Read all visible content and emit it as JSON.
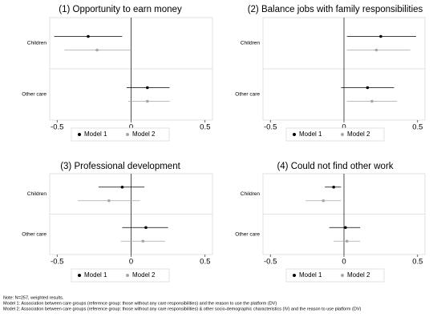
{
  "chart_data": [
    {
      "type": "coefplot",
      "title": "(1) Opportunity to earn money",
      "categories": [
        "Children",
        "Other care"
      ],
      "series": [
        {
          "name": "Model 1",
          "color": "#000000",
          "values": [
            -0.29,
            0.11
          ],
          "ci_low": [
            -0.52,
            -0.03
          ],
          "ci_high": [
            -0.06,
            0.26
          ]
        },
        {
          "name": "Model 2",
          "color": "#a6a6a6",
          "values": [
            -0.23,
            0.11
          ],
          "ci_low": [
            -0.45,
            -0.02
          ],
          "ci_high": [
            0.0,
            0.26
          ]
        }
      ],
      "xlim": [
        -0.55,
        0.55
      ],
      "xticks": [
        -0.5,
        0,
        0.5
      ]
    },
    {
      "type": "coefplot",
      "title": "(2) Balance jobs with family responsibilities",
      "categories": [
        "Children",
        "Other care"
      ],
      "series": [
        {
          "name": "Model 1",
          "color": "#000000",
          "values": [
            0.25,
            0.16
          ],
          "ci_low": [
            0.02,
            -0.02
          ],
          "ci_high": [
            0.49,
            0.34
          ]
        },
        {
          "name": "Model 2",
          "color": "#a6a6a6",
          "values": [
            0.22,
            0.19
          ],
          "ci_low": [
            0.02,
            0.02
          ],
          "ci_high": [
            0.45,
            0.36
          ]
        }
      ],
      "xlim": [
        -0.55,
        0.55
      ],
      "xticks": [
        -0.5,
        0,
        0.5
      ]
    },
    {
      "type": "coefplot",
      "title": "(3) Professional development",
      "categories": [
        "Children",
        "Other care"
      ],
      "series": [
        {
          "name": "Model 1",
          "color": "#000000",
          "values": [
            -0.06,
            0.1
          ],
          "ci_low": [
            -0.22,
            -0.06
          ],
          "ci_high": [
            0.09,
            0.25
          ]
        },
        {
          "name": "Model 2",
          "color": "#a6a6a6",
          "values": [
            -0.15,
            0.08
          ],
          "ci_low": [
            -0.36,
            -0.07
          ],
          "ci_high": [
            0.06,
            0.23
          ]
        }
      ],
      "xlim": [
        -0.55,
        0.55
      ],
      "xticks": [
        -0.5,
        0,
        0.5
      ]
    },
    {
      "type": "coefplot",
      "title": "(4) Could not find other work",
      "categories": [
        "Children",
        "Other care"
      ],
      "series": [
        {
          "name": "Model 1",
          "color": "#000000",
          "values": [
            -0.07,
            0.01
          ],
          "ci_low": [
            -0.13,
            -0.1
          ],
          "ci_high": [
            -0.02,
            0.11
          ]
        },
        {
          "name": "Model 2",
          "color": "#a6a6a6",
          "values": [
            -0.14,
            0.02
          ],
          "ci_low": [
            -0.26,
            -0.07
          ],
          "ci_high": [
            -0.02,
            0.11
          ]
        }
      ],
      "xlim": [
        -0.55,
        0.55
      ],
      "xticks": [
        -0.5,
        0,
        0.5
      ]
    }
  ],
  "notes": [
    "Note: N=257, weighted results.",
    "Model 1: Association between care groups (reference group: those without any care responsibilities) and the reason to use the platform (DV)",
    "Model 2: Association between care groups (reference group: those without any care responsibilities) & other socio-demographic characteristics (IV) and the reason to use platform (DV)"
  ]
}
